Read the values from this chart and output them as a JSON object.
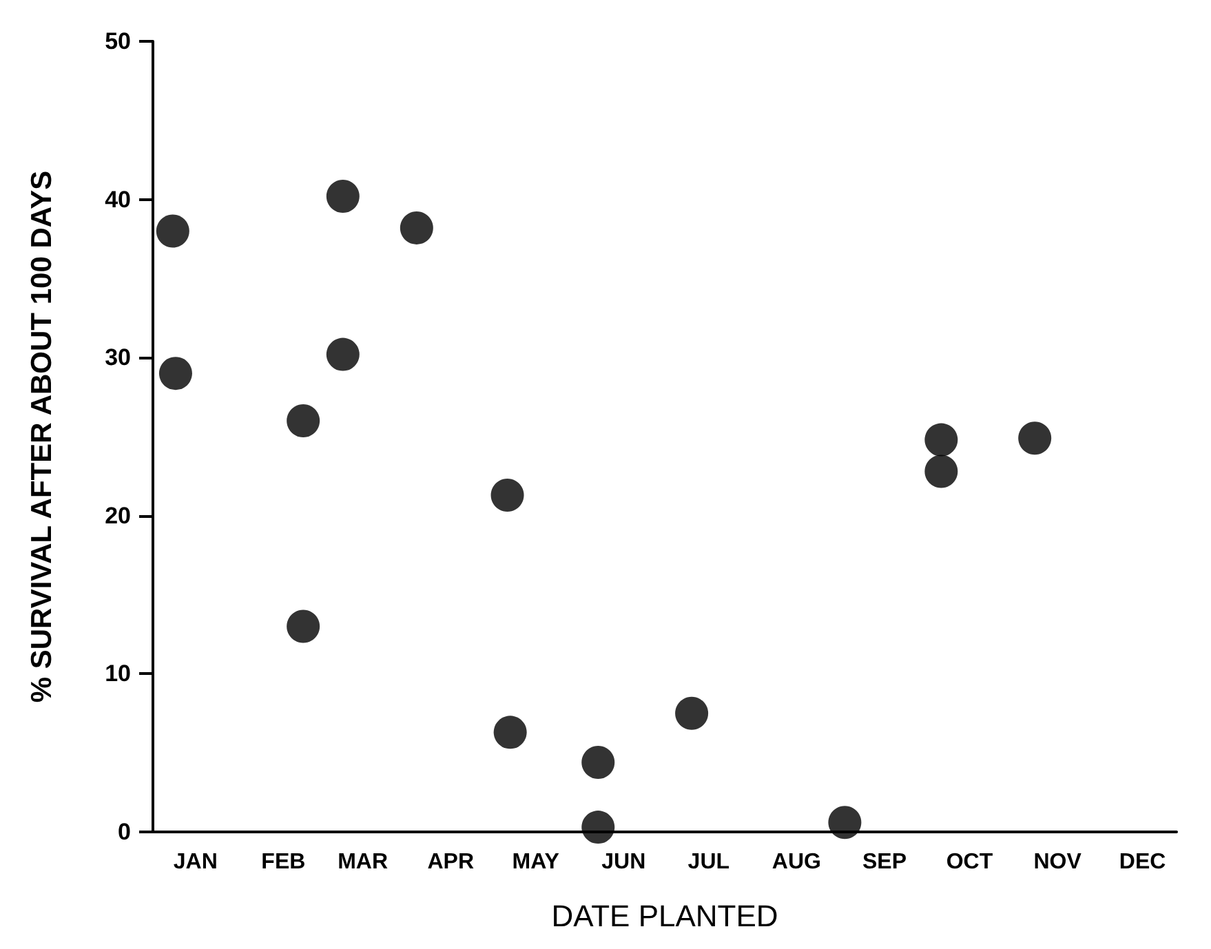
{
  "chart_data": {
    "type": "scatter",
    "xlabel": "DATE PLANTED",
    "ylabel": "% SURVIVAL AFTER ABOUT 100 DAYS",
    "x": [
      "--01-08",
      "--01-09",
      "--02-23",
      "--02-23",
      "--03-09",
      "--03-09",
      "--04-04",
      "--05-06",
      "--05-07",
      "--06-07",
      "--06-07",
      "--07-10",
      "--09-02",
      "--10-06",
      "--10-06",
      "--11-08"
    ],
    "values": [
      38,
      29,
      26,
      13,
      40.2,
      30.2,
      38.2,
      21.3,
      6.3,
      4.4,
      0.3,
      7.5,
      0.6,
      24.8,
      22.8,
      24.9
    ],
    "color": "#000000",
    "marker": "circle",
    "xlim": [
      "--01-01",
      "--12-28"
    ],
    "xticks": [
      {
        "value": "--01-16",
        "label": "JAN"
      },
      {
        "value": "--02-16",
        "label": "FEB"
      },
      {
        "value": "--03-16",
        "label": "MAR"
      },
      {
        "value": "--04-16",
        "label": "APR"
      },
      {
        "value": "--05-16",
        "label": "MAY"
      },
      {
        "value": "--06-16",
        "label": "JUN"
      },
      {
        "value": "--07-16",
        "label": "JUL"
      },
      {
        "value": "--08-16",
        "label": "AUG"
      },
      {
        "value": "--09-16",
        "label": "SEP"
      },
      {
        "value": "--10-16",
        "label": "OCT"
      },
      {
        "value": "--11-16",
        "label": "NOV"
      },
      {
        "value": "--12-16",
        "label": "DEC"
      }
    ],
    "ylim": [
      0,
      50
    ],
    "yticks": [
      0,
      10,
      20,
      30,
      40,
      50
    ],
    "grid": false
  }
}
